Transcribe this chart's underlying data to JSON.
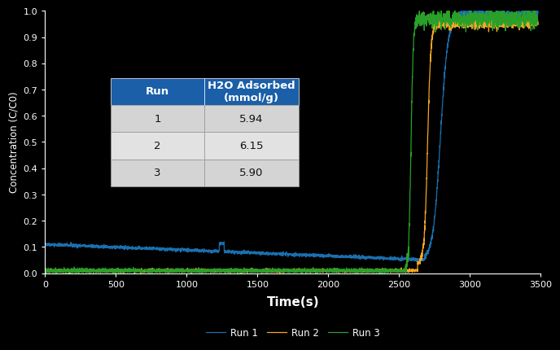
{
  "xlabel": "Time(s)",
  "ylabel": "Concentration (C/C0)",
  "xlim": [
    0,
    3500
  ],
  "ylim": [
    0,
    1.0
  ],
  "yticks": [
    0,
    0.1,
    0.2,
    0.3,
    0.4,
    0.5,
    0.6,
    0.7,
    0.8,
    0.9,
    1
  ],
  "xticks": [
    0,
    500,
    1000,
    1500,
    2000,
    2500,
    3000,
    3500
  ],
  "run1_color": "#1a6faf",
  "run2_color": "#f5a623",
  "run3_color": "#2aa02a",
  "bg_color": "#000000",
  "table_header_color": "#1a5fa8",
  "table_row_color_odd": "#d4d4d4",
  "table_row_color_even": "#e2e2e2",
  "table_runs": [
    "1",
    "2",
    "3"
  ],
  "table_values": [
    "5.94",
    "6.15",
    "5.90"
  ],
  "legend_labels": [
    "Run 1",
    "Run 2",
    "Run 3"
  ]
}
